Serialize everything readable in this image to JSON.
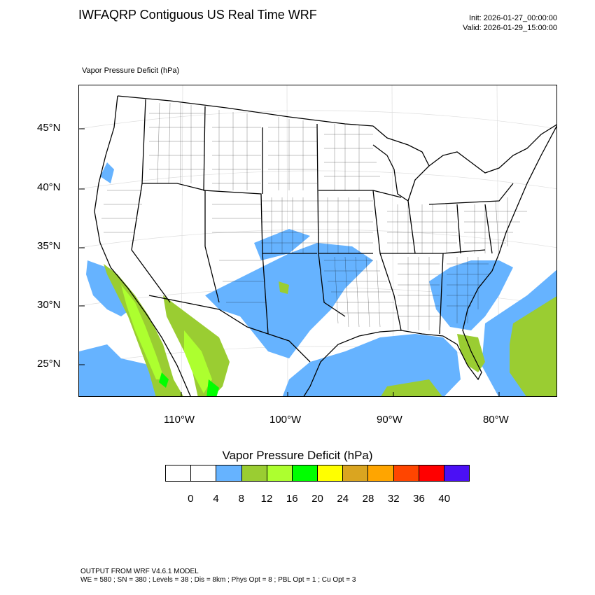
{
  "title": "IWFAQRP Contiguous US Real Time WRF",
  "init": "Init: 2026-01-27_00:00:00",
  "valid": "Valid: 2026-01-29_15:00:00",
  "subtitle": "Vapor Pressure Deficit   (hPa)",
  "map": {
    "lat_labels": [
      "45°N",
      "40°N",
      "35°N",
      "30°N",
      "25°N"
    ],
    "lon_labels": [
      "110°W",
      "100°W",
      "90°W",
      "80°W"
    ]
  },
  "colorbar": {
    "title": "Vapor Pressure Deficit  (hPa)",
    "labels": [
      "0",
      "4",
      "8",
      "12",
      "16",
      "20",
      "24",
      "28",
      "32",
      "36",
      "40"
    ],
    "colors": [
      "#ffffff",
      "#ffffff",
      "#66b3ff",
      "#9acd32",
      "#adff2f",
      "#00ff00",
      "#ffff00",
      "#daa520",
      "#ffa500",
      "#ff4500",
      "#ff0000",
      "#4b10f5"
    ]
  },
  "footer": {
    "line1": "OUTPUT FROM WRF V4.6.1 MODEL",
    "line2": "WE = 580 ; SN = 380 ; Levels = 38 ; Dis = 8km ; Phys Opt = 8 ; PBL Opt = 1 ; Cu Opt = 3"
  }
}
